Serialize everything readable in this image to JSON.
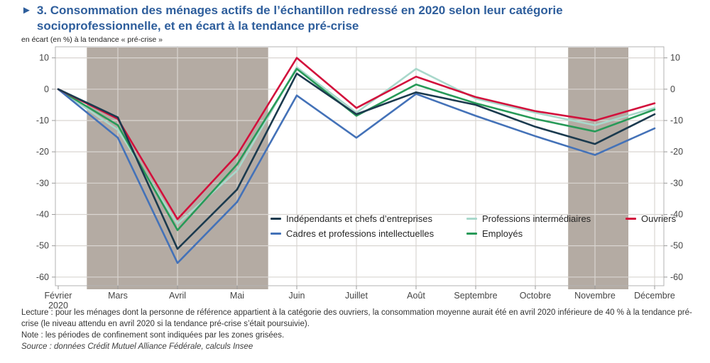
{
  "header": {
    "marker": "►",
    "title": "3. Consommation des ménages actifs de l’échantillon redressé en 2020 selon leur catégorie socioprofessionnelle, et en écart à la tendance pré-crise",
    "subtitle": "en écart (en %) à la tendance « pré-crise »",
    "accent_color": "#2e5e9c"
  },
  "footer": {
    "lecture": "Lecture : pour les ménages dont la personne de référence appartient à la catégorie des ouvriers, la consommation moyenne aurait été en avril 2020 inférieure de 40 % à la tendance pré-crise (le niveau attendu en avril 2020 si la tendance pré-crise s’était poursuivie).",
    "note": "Note : les périodes de confinement sont indiquées par les zones grisées.",
    "source": "Source : données Crédit Mutuel Alliance Fédérale, calculs Insee"
  },
  "chart_data": {
    "type": "line",
    "title": "Consommation des ménages actifs selon la catégorie socioprofessionnelle, écart à la tendance pré-crise",
    "ylabel": "en écart (en %) à la tendance « pré-crise »",
    "xlabel": "",
    "categories": [
      [
        "Février",
        "2020"
      ],
      [
        "Mars"
      ],
      [
        "Avril"
      ],
      [
        "Mai"
      ],
      [
        "Juin"
      ],
      [
        "Juillet"
      ],
      [
        "Août"
      ],
      [
        "Septembre"
      ],
      [
        "Octobre"
      ],
      [
        "Novembre"
      ],
      [
        "Décembre"
      ]
    ],
    "yticks": [
      10,
      0,
      -10,
      -20,
      -30,
      -40,
      -50,
      -60
    ],
    "ylim": [
      -60,
      10
    ],
    "grid": true,
    "legend_position": "inside-bottom-right",
    "shaded_color": "#b4aba3",
    "shaded_zones": [
      {
        "from": 0.48,
        "to": 3.52,
        "meaning": "confinement"
      },
      {
        "from": 8.55,
        "to": 9.56,
        "meaning": "confinement"
      }
    ],
    "series": [
      {
        "name": "Indépendants et chefs d’entreprises",
        "color": "#1b3a4e",
        "values": [
          0,
          -9,
          -51,
          -32,
          5,
          -8,
          -1,
          -5,
          -12,
          -17.5,
          -8
        ]
      },
      {
        "name": "Cadres et professions intellectuelles",
        "color": "#4472b8",
        "values": [
          0,
          -15.5,
          -55.5,
          -36,
          -2,
          -15.5,
          -1.5,
          -8.5,
          -15,
          -21,
          -12.5
        ]
      },
      {
        "name": "Professions intermédiaires",
        "color": "#a9d8cb",
        "values": [
          0,
          -13,
          -43,
          -26,
          7,
          -7.5,
          6.5,
          -3,
          -7.5,
          -11.5,
          -6
        ]
      },
      {
        "name": "Employés",
        "color": "#279a58",
        "values": [
          0,
          -11.5,
          -45,
          -24,
          6.5,
          -8.5,
          1.5,
          -4.5,
          -9.5,
          -13.5,
          -6.5
        ]
      },
      {
        "name": "Ouvriers",
        "color": "#d2103c",
        "values": [
          0,
          -9.5,
          -41.5,
          -21,
          10,
          -6,
          4,
          -2.5,
          -7,
          -10,
          -4.5
        ]
      }
    ],
    "legend_order": [
      0,
      2,
      4,
      1,
      3
    ],
    "draw_order": [
      2,
      3,
      1,
      4,
      0
    ]
  }
}
